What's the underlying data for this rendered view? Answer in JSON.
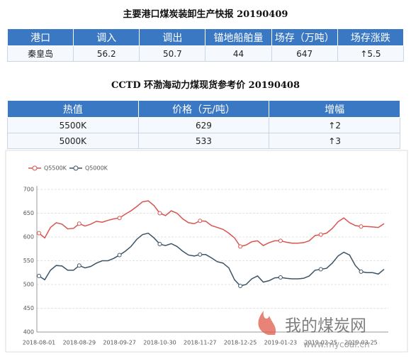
{
  "report": {
    "title": "主要港口煤炭装卸生产快报 20190409",
    "table": {
      "header": [
        "港口",
        "调入",
        "调出",
        "锚地船舶量",
        "场存（万吨）",
        "场存涨跌"
      ],
      "rows": [
        [
          "秦皇岛",
          "56.2",
          "50.7",
          "44",
          "647",
          "↑5.5"
        ]
      ]
    }
  },
  "price": {
    "title": "CCTD 环渤海动力煤现货参考价 20190408",
    "table": {
      "header": [
        "热值",
        "价格（元/吨）",
        "增幅"
      ],
      "rows": [
        [
          "5500K",
          "629",
          "↑2"
        ],
        [
          "5000K",
          "533",
          "↑3"
        ]
      ]
    }
  },
  "watermark": {
    "name": "我的煤炭网",
    "url": "www.mycoal.cn"
  },
  "chart_data": {
    "type": "line",
    "categories": [
      "2018-08-01",
      null,
      null,
      null,
      null,
      null,
      null,
      "2018-08-29",
      null,
      null,
      null,
      null,
      null,
      null,
      "2018-09-27",
      null,
      null,
      null,
      null,
      null,
      null,
      "2018-10-30",
      null,
      null,
      null,
      null,
      null,
      null,
      "2018-11-27",
      null,
      null,
      null,
      null,
      null,
      null,
      "2018-12-25",
      null,
      null,
      null,
      null,
      null,
      null,
      "2019-01-23",
      null,
      null,
      null,
      null,
      null,
      null,
      "2019-02-25",
      null,
      null,
      null,
      null,
      null,
      null,
      "2019-03-25",
      null,
      null,
      null,
      null
    ],
    "series": [
      {
        "name": "Q5500K",
        "color": "#d9534f",
        "values": [
          608,
          598,
          620,
          630,
          627,
          617,
          618,
          628,
          623,
          627,
          633,
          631,
          635,
          638,
          640,
          648,
          655,
          664,
          674,
          676,
          666,
          650,
          645,
          655,
          650,
          638,
          630,
          628,
          634,
          633,
          624,
          620,
          616,
          608,
          598,
          580,
          583,
          590,
          592,
          582,
          588,
          592,
          592,
          589,
          587,
          587,
          588,
          592,
          603,
          605,
          608,
          618,
          632,
          640,
          630,
          624,
          622,
          622,
          621,
          620,
          628
        ]
      },
      {
        "name": "Q5000K",
        "color": "#3d5466",
        "values": [
          518,
          510,
          530,
          540,
          539,
          530,
          530,
          540,
          535,
          538,
          545,
          550,
          550,
          555,
          562,
          570,
          580,
          595,
          605,
          608,
          598,
          585,
          582,
          586,
          580,
          570,
          562,
          560,
          563,
          563,
          556,
          548,
          545,
          535,
          510,
          497,
          500,
          512,
          518,
          505,
          508,
          514,
          515,
          513,
          512,
          512,
          513,
          518,
          530,
          532,
          534,
          545,
          560,
          568,
          562,
          540,
          527,
          525,
          525,
          522,
          532
        ]
      }
    ],
    "ylim": [
      400,
      700
    ],
    "yticks": [
      400,
      450,
      500,
      550,
      600,
      650,
      700
    ],
    "grid": true
  }
}
